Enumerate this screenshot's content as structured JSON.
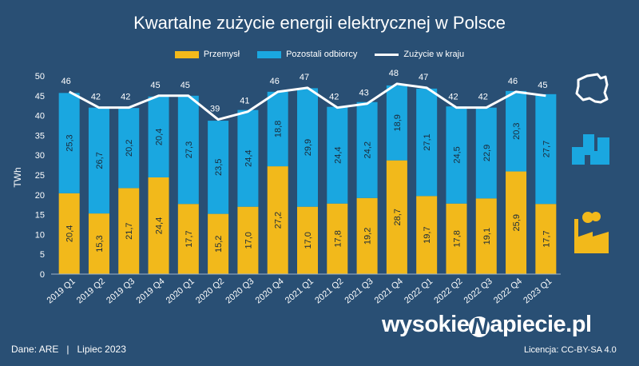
{
  "chart_data": {
    "type": "bar",
    "stacked": true,
    "title": "Kwartalne zużycie energii elektrycznej w Polsce",
    "xlabel": "",
    "ylabel": "TWh",
    "ylim": [
      0,
      50
    ],
    "yticks": [
      0,
      5,
      10,
      15,
      20,
      25,
      30,
      35,
      40,
      45,
      50
    ],
    "grid": false,
    "legend_position": "top",
    "categories": [
      "2019 Q1",
      "2019 Q2",
      "2019 Q3",
      "2019 Q4",
      "2020 Q1",
      "2020 Q2",
      "2020 Q3",
      "2020 Q4",
      "2021 Q1",
      "2021 Q2",
      "2021 Q3",
      "2021 Q4",
      "2022 Q1",
      "2022 Q2",
      "2022 Q3",
      "2022 Q4",
      "2023 Q1"
    ],
    "series": [
      {
        "name": "Przemysł",
        "type": "bar",
        "color": "#f2b91b",
        "values": [
          20.4,
          15.3,
          21.7,
          24.4,
          17.7,
          15.2,
          17.0,
          27.2,
          17.0,
          17.8,
          19.2,
          28.7,
          19.7,
          17.8,
          19.1,
          25.9,
          17.7
        ],
        "labels": [
          "20,4",
          "15,3",
          "21,7",
          "24,4",
          "17,7",
          "15,2",
          "17,0",
          "27,2",
          "17,0",
          "17,8",
          "19,2",
          "28,7",
          "19,7",
          "17,8",
          "19,1",
          "25,9",
          "17,7"
        ]
      },
      {
        "name": "Pozostali odbiorcy",
        "type": "bar",
        "color": "#1aa7e0",
        "values": [
          25.3,
          26.7,
          20.2,
          20.4,
          27.3,
          23.5,
          24.4,
          18.8,
          29.9,
          24.4,
          24.2,
          18.9,
          27.1,
          24.5,
          22.9,
          20.3,
          27.7
        ],
        "labels": [
          "25,3",
          "26,7",
          "20,2",
          "20,4",
          "27,3",
          "23,5",
          "24,4",
          "18,8",
          "29,9",
          "24,4",
          "24,2",
          "18,9",
          "27,1",
          "24,5",
          "22,9",
          "20,3",
          "27,7"
        ]
      },
      {
        "name": "Zużycie w kraju",
        "type": "line",
        "color": "#ffffff",
        "values": [
          46,
          42,
          42,
          45,
          45,
          39,
          41,
          46,
          47,
          42,
          43,
          48,
          47,
          42,
          42,
          46,
          45
        ]
      }
    ]
  },
  "footer": {
    "source": "Dane: ARE   |   Lipiec 2023",
    "logo_left": "wysokie",
    "logo_right": "apiecie.pl",
    "license": "Licencja: CC-BY-SA 4.0"
  },
  "icons": [
    "poland-map-icon",
    "city-buildings-icon",
    "factory-icon"
  ]
}
